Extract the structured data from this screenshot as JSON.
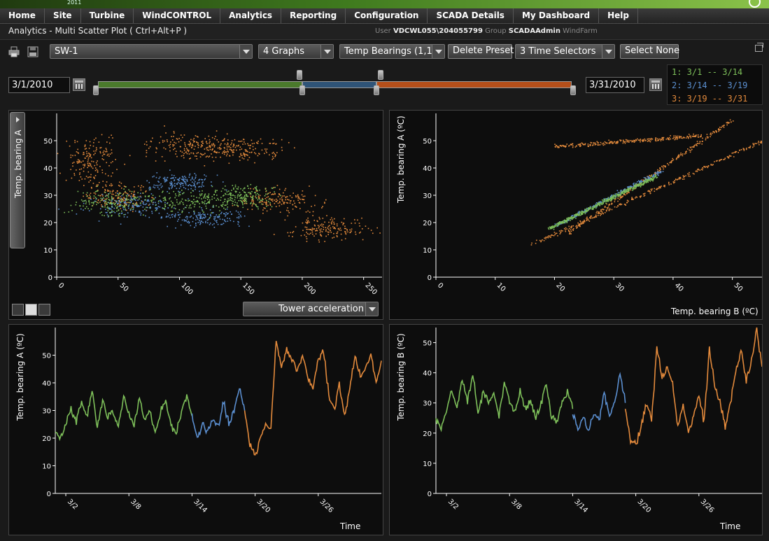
{
  "app": {
    "year": "2011"
  },
  "nav": {
    "items": [
      "Home",
      "Site",
      "Turbine",
      "WindCONTROL",
      "Analytics",
      "Reporting",
      "Configuration",
      "SCADA Details",
      "My Dashboard",
      "Help"
    ]
  },
  "titlebar": {
    "title": "Analytics - Multi Scatter Plot  ( Ctrl+Alt+P )",
    "user_label": "User",
    "user": "VDCWL055\\204055799",
    "group_label": "Group",
    "group": "SCADAAdmin",
    "windfarm_label": "WindFarm"
  },
  "toolbar": {
    "turbine": "SW-1",
    "graphs": "4 Graphs",
    "preset": "Temp Bearings (1,1",
    "delete_preset": "Delete Preset",
    "time_selectors": "3 Time Selectors",
    "select_none": "Select None"
  },
  "timebar": {
    "start_date": "3/1/2010",
    "end_date": "3/31/2010",
    "ranges": [
      {
        "label": "1: 3/1 -- 3/14",
        "color": "#7ec05a"
      },
      {
        "label": "2: 3/14 -- 3/19",
        "color": "#5b8fd0"
      },
      {
        "label": "3: 3/19 -- 3/31",
        "color": "#e38a3c"
      }
    ]
  },
  "panels": {
    "p1": {
      "y_axis_selector": "Temp. bearing A",
      "x_axis_selector": "Tower acceleration"
    },
    "p2": {
      "ylabel": "Temp. bearing A (ºC)",
      "xlabel": "Temp. bearing B (ºC)"
    },
    "p3": {
      "ylabel": "Temp. bearing A (ºC)",
      "xlabel": "Time"
    },
    "p4": {
      "ylabel": "Temp. bearing B (ºC)",
      "xlabel": "Time"
    }
  },
  "chart_data": [
    {
      "type": "scatter",
      "name": "p1",
      "ylabel": "Temp. bearing A",
      "xlabel": "Tower acceleration",
      "xlim": [
        0,
        265
      ],
      "ylim": [
        0,
        60
      ],
      "xticks": [
        0,
        50,
        100,
        150,
        200,
        250
      ],
      "yticks": [
        0,
        10,
        20,
        30,
        40,
        50
      ],
      "series": [
        {
          "color": "#e38a3c",
          "clusters": [
            [
              30,
              43,
              25,
              10
            ],
            [
              110,
              48,
              50,
              6
            ],
            [
              150,
              47,
              45,
              5
            ],
            [
              50,
              30,
              30,
              6
            ],
            [
              220,
              18,
              40,
              5
            ],
            [
              180,
              28,
              40,
              6
            ]
          ]
        },
        {
          "color": "#5b8fd0",
          "clusters": [
            [
              60,
              27,
              45,
              6
            ],
            [
              120,
              22,
              40,
              4
            ],
            [
              100,
              35,
              35,
              4
            ]
          ]
        },
        {
          "color": "#7ec05a",
          "clusters": [
            [
              45,
              28,
              40,
              6
            ],
            [
              110,
              28,
              40,
              5
            ],
            [
              150,
              30,
              30,
              5
            ]
          ]
        }
      ]
    },
    {
      "type": "scatter",
      "name": "p2",
      "ylabel": "Temp. bearing A (ºC)",
      "xlabel": "Temp. bearing B (ºC)",
      "xlim": [
        0,
        55
      ],
      "ylim": [
        0,
        60
      ],
      "xticks": [
        0,
        10,
        20,
        30,
        40,
        50
      ],
      "yticks": [
        0,
        10,
        20,
        30,
        40,
        50
      ],
      "series": [
        {
          "color": "#e38a3c",
          "lines": [
            [
              [
                16,
                12
              ],
              [
                55,
                50
              ]
            ],
            [
              [
                20,
                48
              ],
              [
                45,
                52
              ]
            ],
            [
              [
                22,
                16
              ],
              [
                50,
                58
              ]
            ]
          ]
        },
        {
          "color": "#5b8fd0",
          "lines": [
            [
              [
                20,
                19
              ],
              [
                38,
                39
              ]
            ]
          ]
        },
        {
          "color": "#7ec05a",
          "lines": [
            [
              [
                19,
                18
              ],
              [
                37,
                37
              ]
            ]
          ]
        }
      ]
    },
    {
      "type": "line",
      "name": "p3",
      "ylabel": "Temp. bearing A (ºC)",
      "xlabel": "Time",
      "xlim": [
        1,
        32
      ],
      "ylim": [
        0,
        60
      ],
      "xtick_labels": [
        "3/2",
        "3/8",
        "3/14",
        "3/20",
        "3/26"
      ],
      "xtick_values": [
        2,
        8,
        14,
        20,
        26
      ],
      "yticks": [
        0,
        10,
        20,
        30,
        40,
        50
      ],
      "series": [
        {
          "color": "#7ec05a",
          "x": [
            1,
            1.5,
            2,
            2.5,
            3,
            3.5,
            4,
            4.5,
            5,
            5.5,
            6,
            6.5,
            7,
            7.5,
            8,
            8.5,
            9,
            9.5,
            10,
            10.5,
            11,
            11.5,
            12,
            12.5,
            13,
            13.5,
            14
          ],
          "y": [
            22,
            20,
            25,
            30,
            26,
            33,
            28,
            37,
            24,
            34,
            27,
            30,
            24,
            35,
            29,
            25,
            34,
            26,
            30,
            22,
            29,
            34,
            25,
            21,
            30,
            35,
            28
          ]
        },
        {
          "color": "#5b8fd0",
          "x": [
            14,
            14.5,
            15,
            15.5,
            16,
            16.5,
            17,
            17.5,
            18,
            18.5,
            19
          ],
          "y": [
            28,
            20,
            25,
            22,
            27,
            24,
            33,
            25,
            30,
            38,
            30
          ]
        },
        {
          "color": "#e38a3c",
          "x": [
            19,
            19.5,
            20,
            20.5,
            21,
            21.5,
            22,
            22.5,
            23,
            23.5,
            24,
            24.5,
            25,
            25.5,
            26,
            26.5,
            27,
            27.5,
            28,
            28.5,
            29,
            29.5,
            30,
            30.5,
            31,
            31.5,
            32
          ],
          "y": [
            30,
            18,
            13,
            20,
            25,
            23,
            55,
            46,
            52,
            48,
            44,
            50,
            42,
            38,
            48,
            52,
            36,
            30,
            40,
            28,
            38,
            50,
            42,
            45,
            50,
            40,
            48
          ]
        }
      ]
    },
    {
      "type": "line",
      "name": "p4",
      "ylabel": "Temp. bearing B (ºC)",
      "xlabel": "Time",
      "xlim": [
        1,
        32
      ],
      "ylim": [
        0,
        55
      ],
      "xtick_labels": [
        "3/2",
        "3/8",
        "3/14",
        "3/20",
        "3/26"
      ],
      "xtick_values": [
        2,
        8,
        14,
        20,
        26
      ],
      "yticks": [
        0,
        10,
        20,
        30,
        40,
        50
      ],
      "series": [
        {
          "color": "#7ec05a",
          "x": [
            1,
            1.5,
            2,
            2.5,
            3,
            3.5,
            4,
            4.5,
            5,
            5.5,
            6,
            6.5,
            7,
            7.5,
            8,
            8.5,
            9,
            9.5,
            10,
            10.5,
            11,
            11.5,
            12,
            12.5,
            13,
            13.5,
            14
          ],
          "y": [
            24,
            22,
            27,
            34,
            28,
            38,
            30,
            40,
            27,
            34,
            30,
            33,
            26,
            37,
            30,
            27,
            34,
            28,
            31,
            25,
            30,
            36,
            26,
            24,
            30,
            34,
            28
          ]
        },
        {
          "color": "#5b8fd0",
          "x": [
            14,
            14.5,
            15,
            15.5,
            16,
            16.5,
            17,
            17.5,
            18,
            18.5,
            19
          ],
          "y": [
            27,
            21,
            25,
            22,
            26,
            24,
            34,
            26,
            30,
            40,
            30
          ]
        },
        {
          "color": "#e38a3c",
          "x": [
            19,
            19.5,
            20,
            20.5,
            21,
            21.5,
            22,
            22.5,
            23,
            23.5,
            24,
            24.5,
            25,
            25.5,
            26,
            26.5,
            27,
            27.5,
            28,
            28.5,
            29,
            29.5,
            30,
            30.5,
            31,
            31.5,
            32
          ],
          "y": [
            28,
            18,
            16,
            22,
            30,
            24,
            48,
            38,
            42,
            36,
            22,
            30,
            20,
            26,
            32,
            24,
            48,
            36,
            30,
            22,
            30,
            40,
            48,
            38,
            44,
            55,
            42
          ]
        }
      ]
    }
  ]
}
